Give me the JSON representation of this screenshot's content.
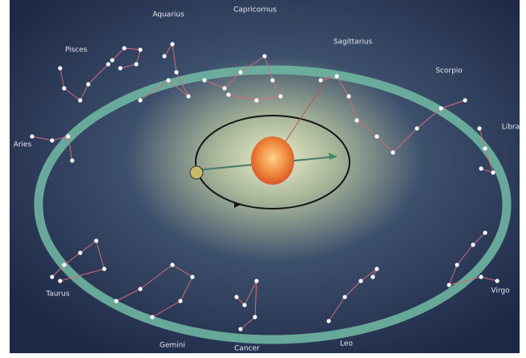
{
  "labels": [
    "Pisces",
    "Aquarius",
    "Capricornus",
    "Sagittarius",
    "Scorpio",
    "Libra",
    "Virgo",
    "Leo",
    "Cancer",
    "Gemini",
    "Taurus",
    "Aries"
  ]
}
